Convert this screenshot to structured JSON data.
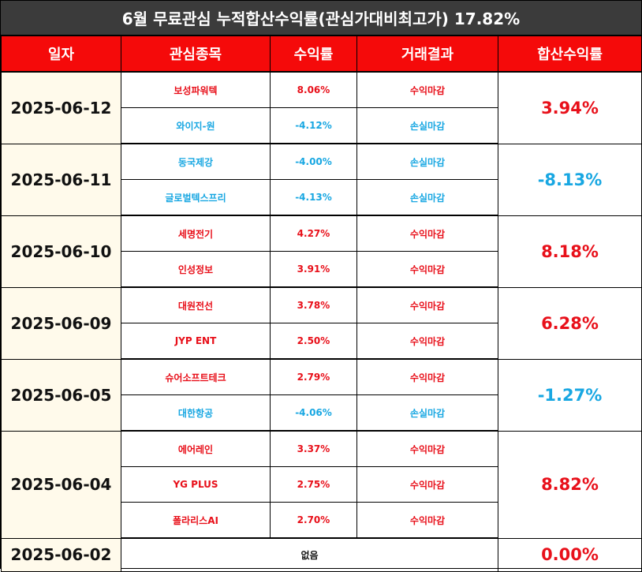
{
  "title": "6월 무료관심 누적합산수익률(관심가대비최고가) 17.82%",
  "headers": [
    "일자",
    "관심종목",
    "수익률",
    "거래결과",
    "합산수익률"
  ],
  "colors": {
    "profit": "#e8101a",
    "loss": "#18a7e2",
    "header_bg": "#f50a0a",
    "title_bg": "#3b3b3b",
    "date_bg": "#fffaeb"
  },
  "groups": [
    {
      "date": "2025-06-12",
      "total": "3.94%",
      "total_color": "red",
      "rows": [
        {
          "name": "보성파워텍",
          "ret": "8.06%",
          "res": "수익마감",
          "color": "red"
        },
        {
          "name": "와이지-원",
          "ret": "-4.12%",
          "res": "손실마감",
          "color": "blue"
        }
      ]
    },
    {
      "date": "2025-06-11",
      "total": "-8.13%",
      "total_color": "blue",
      "rows": [
        {
          "name": "동국제강",
          "ret": "-4.00%",
          "res": "손실마감",
          "color": "blue"
        },
        {
          "name": "글로벌텍스프리",
          "ret": "-4.13%",
          "res": "손실마감",
          "color": "blue"
        }
      ]
    },
    {
      "date": "2025-06-10",
      "total": "8.18%",
      "total_color": "red",
      "rows": [
        {
          "name": "세명전기",
          "ret": "4.27%",
          "res": "수익마감",
          "color": "red"
        },
        {
          "name": "인성정보",
          "ret": "3.91%",
          "res": "수익마감",
          "color": "red"
        }
      ]
    },
    {
      "date": "2025-06-09",
      "total": "6.28%",
      "total_color": "red",
      "rows": [
        {
          "name": "대원전선",
          "ret": "3.78%",
          "res": "수익마감",
          "color": "red"
        },
        {
          "name": "JYP ENT",
          "ret": "2.50%",
          "res": "수익마감",
          "color": "red"
        }
      ]
    },
    {
      "date": "2025-06-05",
      "total": "-1.27%",
      "total_color": "blue",
      "rows": [
        {
          "name": "슈어소프트테크",
          "ret": "2.79%",
          "res": "수익마감",
          "color": "red"
        },
        {
          "name": "대한항공",
          "ret": "-4.06%",
          "res": "손실마감",
          "color": "blue"
        }
      ]
    },
    {
      "date": "2025-06-04",
      "total": "8.82%",
      "total_color": "red",
      "rows": [
        {
          "name": "에어레인",
          "ret": "3.37%",
          "res": "수익마감",
          "color": "red"
        },
        {
          "name": "YG PLUS",
          "ret": "2.75%",
          "res": "수익마감",
          "color": "red"
        },
        {
          "name": "폴라리스AI",
          "ret": "2.70%",
          "res": "수익마감",
          "color": "red"
        }
      ]
    }
  ],
  "last_row": {
    "date": "2025-06-02",
    "none": "없음",
    "total": "0.00%",
    "total_color": "red"
  }
}
